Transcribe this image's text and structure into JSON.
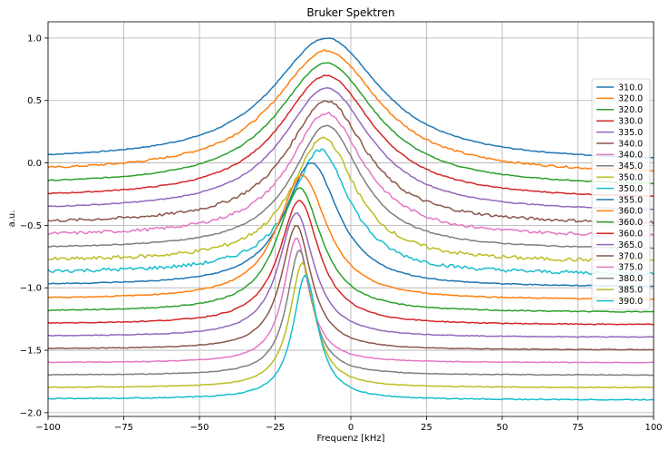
{
  "chart_data": {
    "type": "line",
    "title": "Bruker Spektren",
    "xlabel": "Frequenz [kHz]",
    "ylabel": "a.u.",
    "xlim": [
      -100,
      100
    ],
    "ylim": [
      -2.03,
      1.13
    ],
    "xticks": [
      -100,
      -75,
      -50,
      -25,
      0,
      25,
      50,
      75,
      100
    ],
    "yticks": [
      -2.0,
      -1.5,
      -1.0,
      -0.5,
      0.0,
      0.5,
      1.0
    ],
    "xtick_labels": [
      "−100",
      "−75",
      "−50",
      "−25",
      "0",
      "25",
      "50",
      "75",
      "100"
    ],
    "ytick_labels": [
      "−2.0",
      "−1.5",
      "−1.0",
      "−0.5",
      "0.0",
      "0.5",
      "1.0"
    ],
    "grid": true,
    "legend_position": "right",
    "series": [
      {
        "name": "310.0",
        "color": "#1f77b4",
        "peak_x": -8,
        "peak_y": 1.0,
        "base_y": 0.0,
        "left_base": 0.02,
        "width": 22,
        "noise": 0.004
      },
      {
        "name": "320.0",
        "color": "#ff7f0e",
        "peak_x": -8,
        "peak_y": 0.9,
        "base_y": -0.1,
        "left_base": -0.08,
        "width": 21,
        "noise": 0.008
      },
      {
        "name": "320.0",
        "color": "#2ca02c",
        "peak_x": -8,
        "peak_y": 0.8,
        "base_y": -0.2,
        "left_base": -0.18,
        "width": 20,
        "noise": 0.004
      },
      {
        "name": "330.0",
        "color": "#d62728",
        "peak_x": -8,
        "peak_y": 0.7,
        "base_y": -0.3,
        "left_base": -0.28,
        "width": 19,
        "noise": 0.004
      },
      {
        "name": "335.0",
        "color": "#9467bd",
        "peak_x": -8,
        "peak_y": 0.6,
        "base_y": -0.4,
        "left_base": -0.38,
        "width": 18,
        "noise": 0.004
      },
      {
        "name": "340.0",
        "color": "#8c564b",
        "peak_x": -8,
        "peak_y": 0.5,
        "base_y": -0.5,
        "left_base": -0.49,
        "width": 16,
        "noise": 0.012
      },
      {
        "name": "340.0",
        "color": "#e377c2",
        "peak_x": -8,
        "peak_y": 0.4,
        "base_y": -0.6,
        "left_base": -0.59,
        "width": 15,
        "noise": 0.012
      },
      {
        "name": "345.0",
        "color": "#7f7f7f",
        "peak_x": -8,
        "peak_y": 0.3,
        "base_y": -0.7,
        "left_base": -0.69,
        "width": 14,
        "noise": 0.004
      },
      {
        "name": "350.0",
        "color": "#bcbd22",
        "peak_x": -9,
        "peak_y": 0.2,
        "base_y": -0.8,
        "left_base": -0.79,
        "width": 13,
        "noise": 0.015
      },
      {
        "name": "350.0",
        "color": "#17becf",
        "peak_x": -10,
        "peak_y": 0.1,
        "base_y": -0.9,
        "left_base": -0.88,
        "width": 12,
        "noise": 0.015
      },
      {
        "name": "355.0",
        "color": "#1f77b4",
        "peak_x": -13,
        "peak_y": 0.0,
        "base_y": -1.0,
        "left_base": -0.98,
        "width": 11,
        "noise": 0.004
      },
      {
        "name": "360.0",
        "color": "#ff7f0e",
        "peak_x": -16,
        "peak_y": -0.1,
        "base_y": -1.1,
        "left_base": -1.09,
        "width": 10,
        "noise": 0.004
      },
      {
        "name": "360.0",
        "color": "#2ca02c",
        "peak_x": -17,
        "peak_y": -0.2,
        "base_y": -1.2,
        "left_base": -1.19,
        "width": 9,
        "noise": 0.004
      },
      {
        "name": "360.0",
        "color": "#d62728",
        "peak_x": -17,
        "peak_y": -0.3,
        "base_y": -1.3,
        "left_base": -1.29,
        "width": 8,
        "noise": 0.004
      },
      {
        "name": "365.0",
        "color": "#9467bd",
        "peak_x": -18,
        "peak_y": -0.4,
        "base_y": -1.4,
        "left_base": -1.39,
        "width": 7,
        "noise": 0.003
      },
      {
        "name": "370.0",
        "color": "#8c564b",
        "peak_x": -18,
        "peak_y": -0.5,
        "base_y": -1.5,
        "left_base": -1.49,
        "width": 6,
        "noise": 0.003
      },
      {
        "name": "375.0",
        "color": "#e377c2",
        "peak_x": -18,
        "peak_y": -0.6,
        "base_y": -1.6,
        "left_base": -1.6,
        "width": 5,
        "noise": 0.003
      },
      {
        "name": "380.0",
        "color": "#7f7f7f",
        "peak_x": -17,
        "peak_y": -0.7,
        "base_y": -1.7,
        "left_base": -1.7,
        "width": 5,
        "noise": 0.003
      },
      {
        "name": "385.0",
        "color": "#bcbd22",
        "peak_x": -16,
        "peak_y": -0.8,
        "base_y": -1.8,
        "left_base": -1.8,
        "width": 5,
        "noise": 0.003
      },
      {
        "name": "390.0",
        "color": "#17becf",
        "peak_x": -15,
        "peak_y": -0.9,
        "base_y": -1.9,
        "left_base": -1.89,
        "width": 5,
        "noise": 0.004
      }
    ]
  }
}
